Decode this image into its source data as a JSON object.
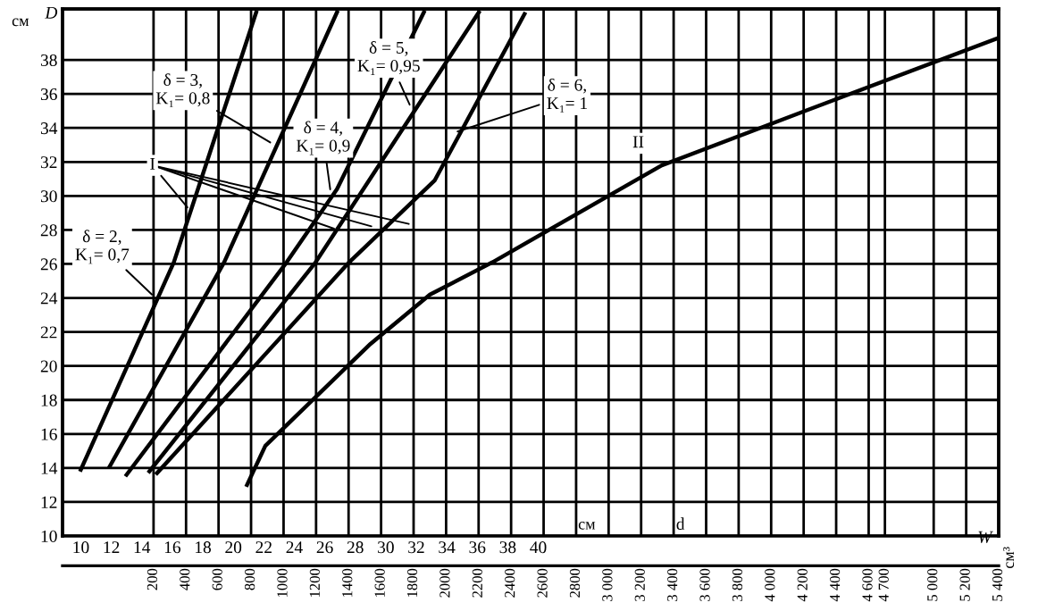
{
  "chart_data": {
    "type": "line",
    "ylabel": "D",
    "xlabel": "d",
    "x2label": "W",
    "xlim": [
      8.8,
      70.2
    ],
    "xticks": [
      10,
      12,
      14,
      16,
      18,
      20,
      22,
      24,
      26,
      28,
      30,
      32,
      34,
      36,
      38,
      40
    ],
    "x2lim": [
      -360,
      5400
    ],
    "x2ticks": [
      200,
      400,
      600,
      800,
      1000,
      1200,
      1400,
      1600,
      1800,
      2000,
      2200,
      2400,
      2600,
      2800,
      {
        "value": 3000,
        "label": "3 000"
      },
      {
        "value": 3200,
        "label": "3 200"
      },
      {
        "value": 3400,
        "label": "3 400"
      },
      {
        "value": 3600,
        "label": "3 600"
      },
      {
        "value": 3800,
        "label": "3 800"
      },
      {
        "value": 4000,
        "label": "4 000"
      },
      {
        "value": 4200,
        "label": "4 200"
      },
      {
        "value": 4400,
        "label": "4 400"
      },
      {
        "value": 4600,
        "label": "4 600"
      },
      {
        "value": 4700,
        "label": "4 700"
      },
      {
        "value": 5000,
        "label": "5 000"
      },
      {
        "value": 5200,
        "label": "5 200"
      },
      {
        "value": 5400,
        "label": "5 400"
      }
    ],
    "ylim": [
      10,
      41
    ],
    "yticks": [
      10,
      12,
      14,
      16,
      18,
      20,
      22,
      24,
      26,
      28,
      30,
      32,
      34,
      36,
      38
    ],
    "grid": true,
    "marker": "none",
    "line_style": "solid",
    "series": [
      {
        "color": "#000000",
        "x": [
          10,
          16.1,
          21.5
        ],
        "values": [
          13.9,
          26.1,
          40.8
        ]
      },
      {
        "color": "#000000",
        "x": [
          11.9,
          19.4,
          26.8
        ],
        "values": [
          14.1,
          26.1,
          40.8
        ]
      },
      {
        "color": "#000000",
        "x": [
          13.0,
          23.5,
          26.8,
          32.5
        ],
        "values": [
          13.6,
          26.1,
          30.4,
          40.8
        ]
      },
      {
        "color": "#000000",
        "x": [
          14.5,
          25.4,
          36.1
        ],
        "values": [
          13.8,
          26.1,
          40.8
        ]
      },
      {
        "color": "#000000",
        "x": [
          15.0,
          27.6,
          33.2,
          39.1
        ],
        "values": [
          13.7,
          26.1,
          30.9,
          40.7
        ]
      },
      {
        "color": "#000000",
        "x": [
          20.9,
          22.1,
          29.0,
          32.9,
          37.0,
          48.1,
          57.8,
          70.2
        ],
        "values": [
          13.0,
          15.3,
          21.3,
          24.2,
          26.1,
          31.8,
          35.1,
          39.3
        ]
      }
    ],
    "annotations": [
      "см",
      "см",
      "см³",
      "II",
      {
        "text": "I",
        "x": 17.2,
        "y": 29.1
      },
      {
        "text": "δ = 2,\nK₁= 0,7",
        "x": 14.9,
        "y": 24
      },
      {
        "text": "δ = 3,\nK₁= 0,8",
        "x": 22.7,
        "y": 33
      },
      {
        "text": "δ = 4,\nK₁= 0,9",
        "x": 26.4,
        "y": 30.1
      },
      {
        "text": "δ = 5,\nK₁= 0,95",
        "x": 31.7,
        "y": 35.1
      },
      {
        "text": "δ = 6,\nK₁= 1",
        "x": 34.4,
        "y": 33.7
      }
    ]
  }
}
